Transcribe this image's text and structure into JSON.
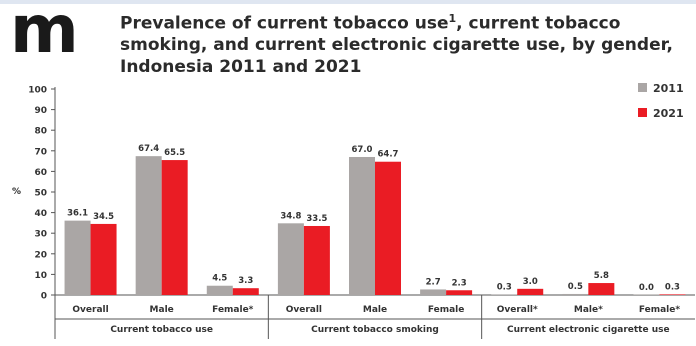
{
  "logo": {
    "letter": "m",
    "color": "#1a1a1a"
  },
  "title": {
    "line1_main": "Prevalence of current tobacco use",
    "line1_sup": "1",
    "line1_rest": ", current tobacco",
    "line2": "smoking, and current electronic cigarette use, by gender,",
    "line3": "Indonesia 2011 and 2021"
  },
  "colors": {
    "s2011": "#aaa6a5",
    "s2021": "#ea1c24",
    "axis": "#555555",
    "text": "#333333"
  },
  "chart_data": {
    "type": "bar",
    "ylabel": "%",
    "ylim": [
      0,
      100
    ],
    "yticks": [
      0,
      10,
      20,
      30,
      40,
      50,
      60,
      70,
      80,
      90,
      100
    ],
    "ytick_labels": [
      "0",
      "10",
      "20",
      "30",
      "40",
      "50",
      "60",
      "70",
      "80",
      "90",
      "100"
    ],
    "legend_position": "top-right",
    "groups": [
      {
        "label": "Current tobacco use",
        "categories": [
          "Overall",
          "Male",
          "Female*"
        ]
      },
      {
        "label": "Current tobacco smoking",
        "categories": [
          "Overall",
          "Male",
          "Female"
        ]
      },
      {
        "label": "Current electronic cigarette use",
        "categories": [
          "Overall*",
          "Male*",
          "Female*"
        ]
      }
    ],
    "categories": [
      "Overall",
      "Male",
      "Female*",
      "Overall",
      "Male",
      "Female",
      "Overall*",
      "Male*",
      "Female*"
    ],
    "series": [
      {
        "name": "2011",
        "values": [
          36.1,
          67.4,
          4.5,
          34.8,
          67.0,
          2.7,
          0.3,
          0.5,
          0.0
        ],
        "labels": [
          "36.1",
          "67.4",
          "4.5",
          "34.8",
          "67.0",
          "2.7",
          "0.3",
          "0.5",
          "0.0"
        ]
      },
      {
        "name": "2021",
        "values": [
          34.5,
          65.5,
          3.3,
          33.5,
          64.7,
          2.3,
          3.0,
          5.8,
          0.3
        ],
        "labels": [
          "34.5",
          "65.5",
          "3.3",
          "33.5",
          "64.7",
          "2.3",
          "3.0",
          "5.8",
          "0.3"
        ]
      }
    ]
  }
}
